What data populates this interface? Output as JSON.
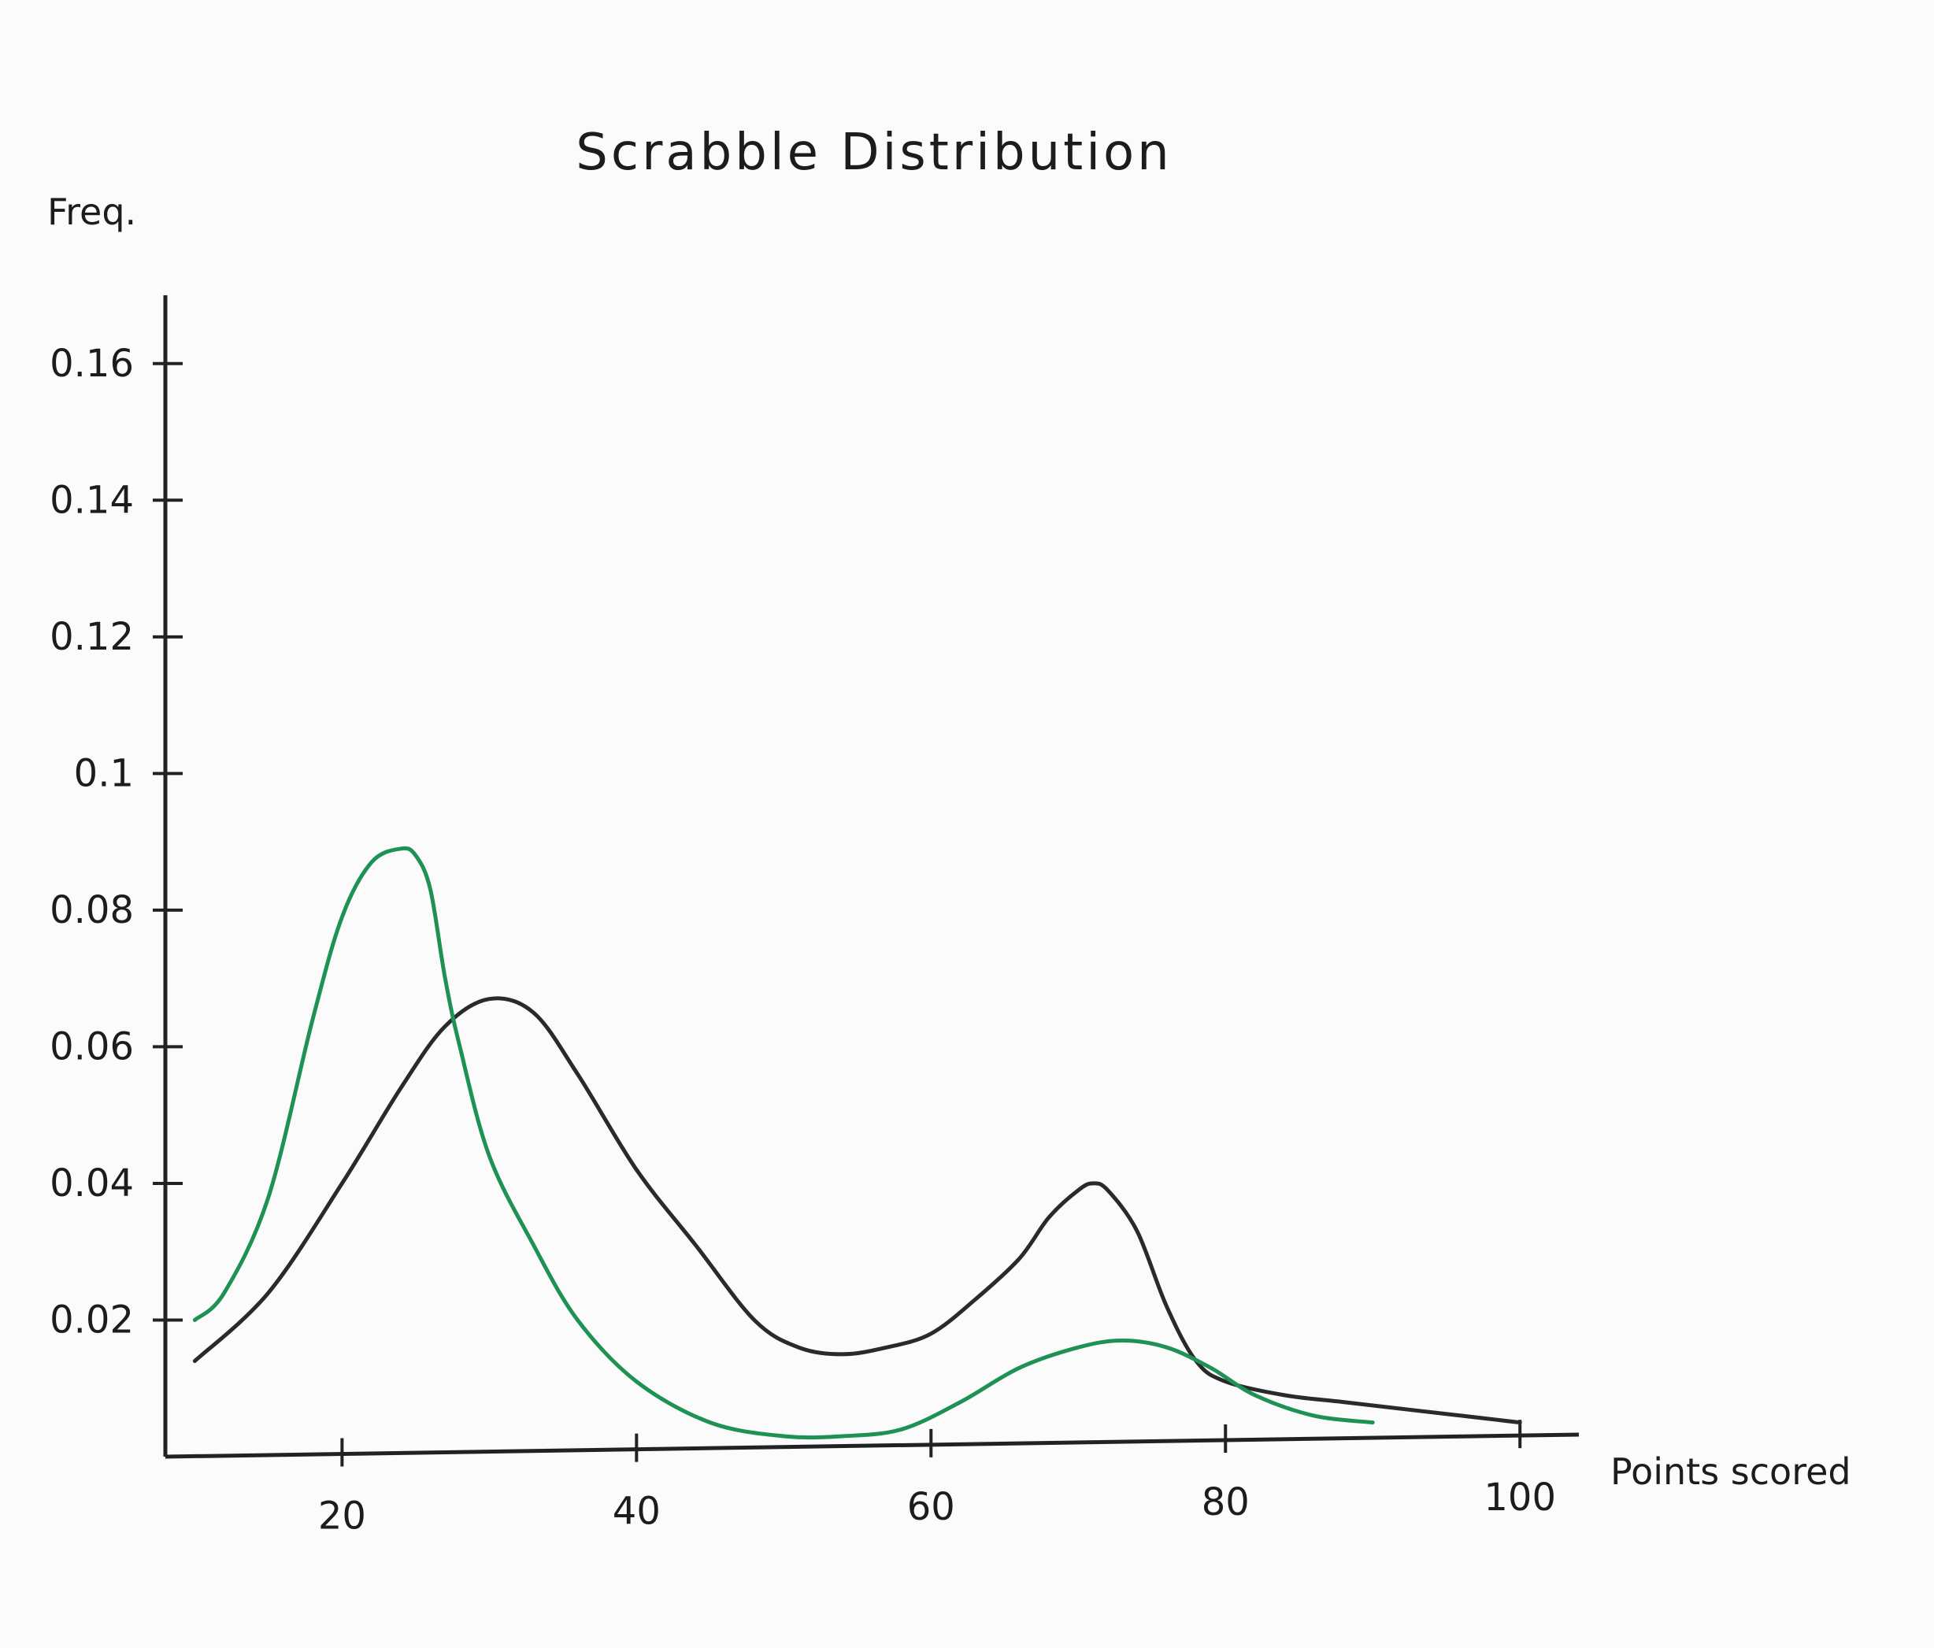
{
  "chart_data": {
    "type": "line",
    "title": "Scrabble Distribution",
    "xlabel": "Points scored",
    "ylabel": "Freq.",
    "xlim": [
      8,
      104
    ],
    "ylim": [
      0,
      0.17
    ],
    "xticks": [
      20,
      40,
      60,
      80,
      100
    ],
    "xtick_labels": [
      "20",
      "40",
      "60",
      "80",
      "100"
    ],
    "yticks": [
      0.02,
      0.04,
      0.06,
      0.08,
      0.1,
      0.12,
      0.14,
      0.16
    ],
    "ytick_labels": [
      "0.02",
      "0.04",
      "0.06",
      "0.08",
      "0.1",
      "0.12",
      "0.14",
      "0.16"
    ],
    "grid": false,
    "series": [
      {
        "color": "#2a2a2a",
        "x": [
          10,
          15,
          20,
          24,
          27,
          30,
          33,
          36,
          40,
          44,
          48,
          51,
          54,
          57,
          60,
          63,
          66,
          68,
          70,
          71,
          72,
          74,
          76,
          78,
          80,
          84,
          88,
          92,
          96,
          100
        ],
        "y": [
          0.014,
          0.024,
          0.04,
          0.054,
          0.063,
          0.067,
          0.065,
          0.056,
          0.042,
          0.031,
          0.02,
          0.016,
          0.015,
          0.016,
          0.018,
          0.023,
          0.029,
          0.035,
          0.039,
          0.04,
          0.039,
          0.033,
          0.022,
          0.014,
          0.011,
          0.009,
          0.008,
          0.007,
          0.006,
          0.005
        ]
      },
      {
        "color": "#1e9154",
        "x": [
          10,
          12,
          15,
          18,
          20,
          22,
          24,
          25,
          26,
          27,
          28,
          30,
          33,
          36,
          40,
          45,
          50,
          54,
          58,
          62,
          66,
          70,
          73,
          76,
          79,
          82,
          86,
          90
        ],
        "y": [
          0.02,
          0.024,
          0.038,
          0.064,
          0.079,
          0.087,
          0.089,
          0.088,
          0.083,
          0.07,
          0.06,
          0.044,
          0.031,
          0.02,
          0.011,
          0.005,
          0.003,
          0.003,
          0.004,
          0.008,
          0.013,
          0.016,
          0.017,
          0.016,
          0.013,
          0.009,
          0.006,
          0.005
        ]
      }
    ]
  }
}
